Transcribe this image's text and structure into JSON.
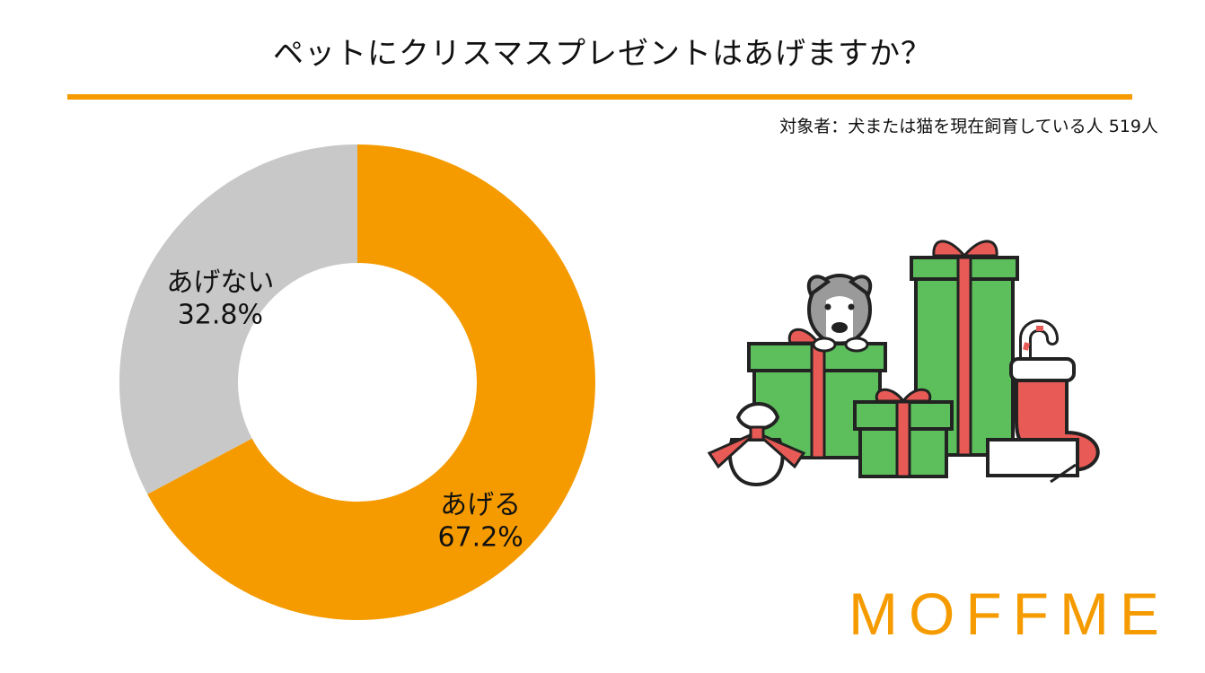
{
  "title": "ペットにクリスマスプレゼントはあげますか？",
  "subtitle": "対象者：犬または猫を現在飼育している人 519人",
  "brand": "MOFFME",
  "colors": {
    "accent": "#f59b00",
    "neutral": "#c8c8c8",
    "text": "#111111"
  },
  "illustration": {
    "icons": [
      "dog-icon",
      "gift-box-icon",
      "candy-cane-icon",
      "stocking-icon",
      "gift-sack-icon",
      "card-icon"
    ]
  },
  "chart_data": {
    "type": "pie",
    "subtype": "donut",
    "title": "ペットにクリスマスプレゼントはあげますか？",
    "slices": [
      {
        "name": "あげる",
        "value": 67.2,
        "label": "67.2%",
        "color": "#f59b00"
      },
      {
        "name": "あげない",
        "value": 32.8,
        "label": "32.8%",
        "color": "#c8c8c8"
      }
    ],
    "start": "12 o'clock",
    "direction": "clockwise",
    "legend": "none"
  }
}
